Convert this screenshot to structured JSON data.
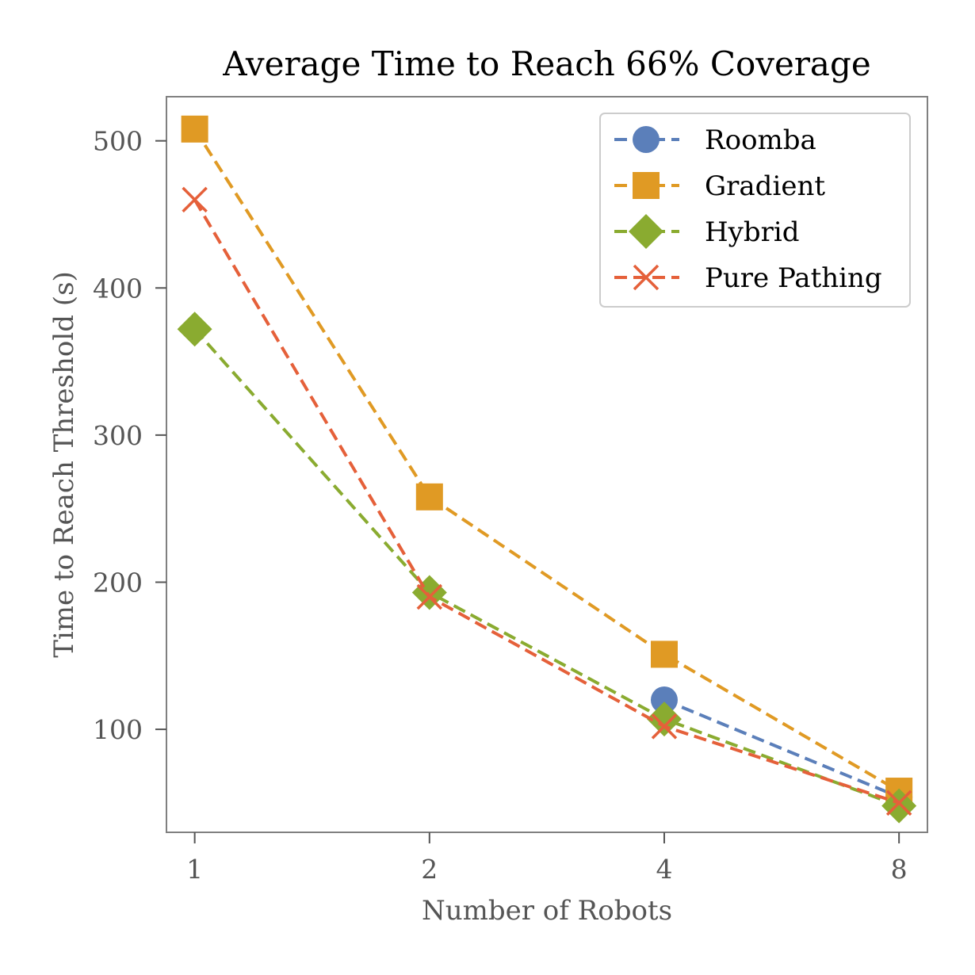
{
  "colors": {
    "background": "#ffffff",
    "axes": "#808080",
    "tick_text": "#555555"
  },
  "chart_data": {
    "type": "line",
    "title": "Average Time to Reach 66% Coverage",
    "xlabel": "Number of Robots",
    "ylabel": "Time to Reach Threshold (s)",
    "x_scale": "log2",
    "xlim": [
      0.92,
      8.7
    ],
    "ylim": [
      30,
      530
    ],
    "xticks": [
      1,
      2,
      4,
      8
    ],
    "xtick_labels": [
      "1",
      "2",
      "4",
      "8"
    ],
    "yticks": [
      100,
      200,
      300,
      400,
      500
    ],
    "ytick_labels": [
      "100",
      "200",
      "300",
      "400",
      "500"
    ],
    "grid": false,
    "legend_position": "top-right",
    "line_style": "dashed",
    "series": [
      {
        "name": "Roomba",
        "color": "#5b7fba",
        "marker": "circle",
        "x": [
          4,
          8
        ],
        "y": [
          120,
          54
        ]
      },
      {
        "name": "Gradient",
        "color": "#e09a24",
        "marker": "square",
        "x": [
          1,
          2,
          4,
          8
        ],
        "y": [
          508,
          258,
          151,
          58
        ]
      },
      {
        "name": "Hybrid",
        "color": "#8aab30",
        "marker": "diamond",
        "x": [
          1,
          2,
          4,
          8
        ],
        "y": [
          372,
          193,
          107,
          48
        ]
      },
      {
        "name": "Pure Pathing",
        "color": "#e5603a",
        "marker": "x",
        "x": [
          1,
          2,
          4,
          8
        ],
        "y": [
          460,
          190,
          102,
          50
        ]
      }
    ]
  }
}
